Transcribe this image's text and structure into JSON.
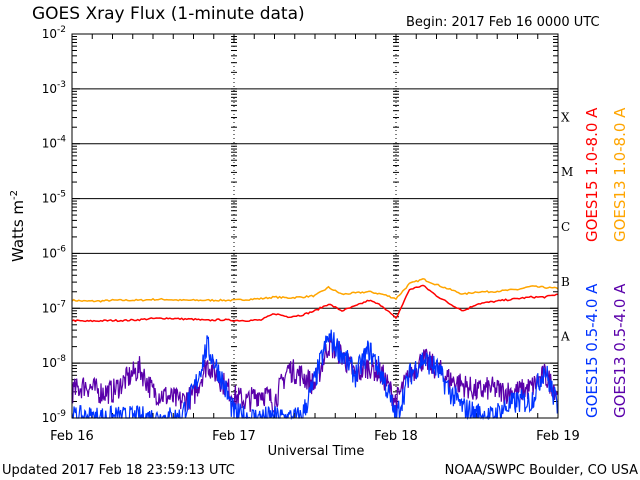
{
  "chart_data": {
    "type": "line",
    "title": "GOES Xray Flux (1-minute data)",
    "begin_label": "Begin:  2017 Feb 16 0000 UTC",
    "xlabel": "Universal Time",
    "ylabel": "Watts m",
    "ylabel_exp": "-2",
    "x_unit": "hours since 2017 Feb 16 0000 UTC",
    "xlim": [
      0,
      72
    ],
    "ylim": [
      1e-09,
      0.01
    ],
    "yscale": "log",
    "grid": "horizontal at each decade from 1e-8 to 1e-3; dotted day separators",
    "x_ticks": [
      {
        "value": 0,
        "label": "Feb 16"
      },
      {
        "value": 24,
        "label": "Feb 17"
      },
      {
        "value": 48,
        "label": "Feb 18"
      },
      {
        "value": 72,
        "label": "Feb 19"
      }
    ],
    "y_ticks": [
      {
        "value": -2,
        "base": "10",
        "exp": "-2"
      },
      {
        "value": -3,
        "base": "10",
        "exp": "-3"
      },
      {
        "value": -4,
        "base": "10",
        "exp": "-4"
      },
      {
        "value": -5,
        "base": "10",
        "exp": "-5"
      },
      {
        "value": -6,
        "base": "10",
        "exp": "-6"
      },
      {
        "value": -7,
        "base": "10",
        "exp": "-7"
      },
      {
        "value": -8,
        "base": "10",
        "exp": "-8"
      },
      {
        "value": -9,
        "base": "10",
        "exp": "-9"
      }
    ],
    "flare_classes": [
      {
        "label": "X",
        "log_value": -3.5
      },
      {
        "label": "M",
        "log_value": -4.5
      },
      {
        "label": "C",
        "log_value": -5.5
      },
      {
        "label": "B",
        "log_value": -6.5
      },
      {
        "label": "A",
        "log_value": -7.5
      }
    ],
    "x": [
      0,
      2,
      4,
      6,
      8,
      10,
      12,
      14,
      16,
      18,
      20,
      22,
      24,
      26,
      28,
      30,
      32,
      34,
      36,
      38,
      40,
      42,
      44,
      46,
      48,
      50,
      52,
      54,
      56,
      58,
      60,
      62,
      64,
      66,
      68,
      70,
      72
    ],
    "series": [
      {
        "name": "GOES15 1.0-8.0 A",
        "color": "#ff0000",
        "values": [
          6e-08,
          5.8e-08,
          5.9e-08,
          6e-08,
          6e-08,
          6.2e-08,
          6.5e-08,
          6.6e-08,
          6.4e-08,
          6.3e-08,
          6e-08,
          6.2e-08,
          6e-08,
          6e-08,
          6.1e-08,
          8e-08,
          7e-08,
          7.5e-08,
          9e-08,
          1.2e-07,
          9e-08,
          1.1e-07,
          1.4e-07,
          1.1e-07,
          6.5e-08,
          2.2e-07,
          2.6e-07,
          1.7e-07,
          1.2e-07,
          9e-08,
          1.2e-07,
          1.3e-07,
          1.4e-07,
          1.5e-07,
          1.6e-07,
          1.6e-07,
          1.8e-07
        ]
      },
      {
        "name": "GOES13 1.0-8.0 A",
        "color": "#ffa500",
        "values": [
          1.4e-07,
          1.35e-07,
          1.35e-07,
          1.4e-07,
          1.4e-07,
          1.4e-07,
          1.45e-07,
          1.45e-07,
          1.4e-07,
          1.4e-07,
          1.4e-07,
          1.4e-07,
          1.4e-07,
          1.45e-07,
          1.5e-07,
          1.6e-07,
          1.55e-07,
          1.6e-07,
          1.7e-07,
          2.4e-07,
          1.8e-07,
          1.9e-07,
          2e-07,
          1.8e-07,
          1.5e-07,
          2.8e-07,
          3.4e-07,
          2.7e-07,
          2.2e-07,
          1.8e-07,
          2e-07,
          2e-07,
          2.1e-07,
          2.2e-07,
          2.5e-07,
          2.4e-07,
          2.3e-07
        ]
      },
      {
        "name": "GOES15 0.5-4.0 A",
        "color": "#0033ff",
        "values": [
          1e-09,
          1e-09,
          1e-09,
          1e-09,
          1e-09,
          1e-09,
          1e-09,
          1e-09,
          1e-09,
          3e-09,
          2e-08,
          6e-09,
          1.2e-09,
          1e-09,
          1e-09,
          1e-09,
          1e-09,
          1e-09,
          5e-09,
          3e-08,
          1.5e-08,
          6e-09,
          1.8e-08,
          6e-09,
          1e-09,
          6e-09,
          1.2e-08,
          8e-09,
          3e-09,
          1.5e-09,
          1.2e-09,
          1e-09,
          1.5e-09,
          2e-09,
          2e-09,
          8e-09,
          1.5e-09
        ]
      },
      {
        "name": "GOES13 0.5-4.0 A",
        "color": "#5a00aa",
        "values": [
          3e-09,
          4e-09,
          3e-09,
          3e-09,
          5e-09,
          8e-09,
          3e-09,
          2.5e-09,
          2e-09,
          2.5e-09,
          1e-08,
          5e-09,
          2.5e-09,
          2e-09,
          3e-09,
          2e-09,
          8e-09,
          6e-09,
          4e-09,
          2.2e-08,
          1.4e-08,
          6e-09,
          9e-09,
          6e-09,
          2e-09,
          6e-09,
          1.2e-08,
          8e-09,
          5e-09,
          4e-09,
          3e-09,
          3.5e-09,
          3e-09,
          3e-09,
          3.5e-09,
          6e-09,
          3e-09
        ]
      }
    ]
  },
  "footer": {
    "updated": "Updated 2017 Feb 18 23:59:13 UTC",
    "source": "NOAA/SWPC Boulder, CO USA"
  }
}
